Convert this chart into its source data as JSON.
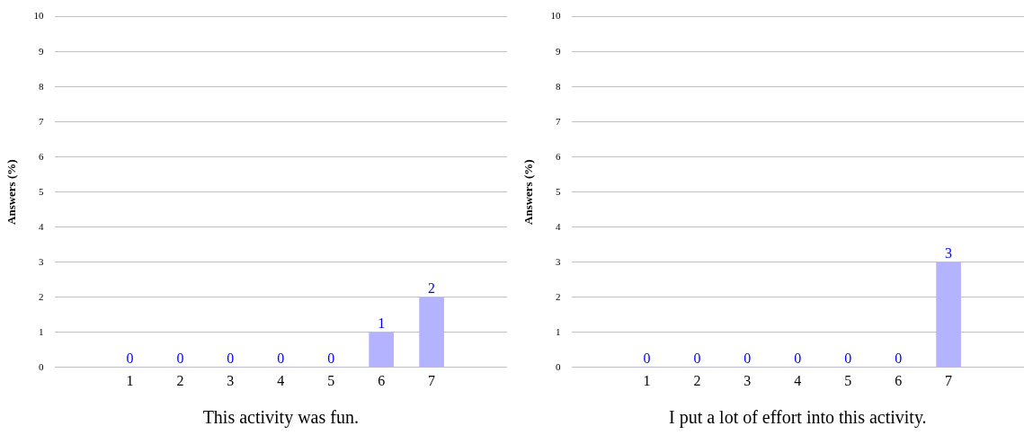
{
  "chart_data": [
    {
      "type": "bar",
      "xlabel": "This activity was fun.",
      "ylabel": "Answers (%)",
      "x": [
        1,
        2,
        3,
        4,
        5,
        6,
        7
      ],
      "values": [
        0,
        0,
        0,
        0,
        0,
        1,
        2
      ],
      "color": "#b3b3ff",
      "xlim": [
        -0.5,
        8.5
      ],
      "xticks": [
        1,
        2,
        3,
        4,
        5,
        6,
        7
      ],
      "ylim": [
        0,
        10
      ],
      "yticks": [
        0,
        1,
        2,
        3,
        4,
        5,
        6,
        7,
        8,
        9,
        10
      ],
      "grid": "y",
      "data_labels": true
    },
    {
      "type": "bar",
      "xlabel": "I put a lot of effort into this activity.",
      "ylabel": "Answers (%)",
      "x": [
        1,
        2,
        3,
        4,
        5,
        6,
        7
      ],
      "values": [
        0,
        0,
        0,
        0,
        0,
        0,
        3
      ],
      "color": "#b3b3ff",
      "xlim": [
        -0.5,
        8.5
      ],
      "xticks": [
        1,
        2,
        3,
        4,
        5,
        6,
        7
      ],
      "ylim": [
        0,
        10
      ],
      "yticks": [
        0,
        1,
        2,
        3,
        4,
        5,
        6,
        7,
        8,
        9,
        10
      ],
      "grid": "y",
      "data_labels": true
    }
  ]
}
